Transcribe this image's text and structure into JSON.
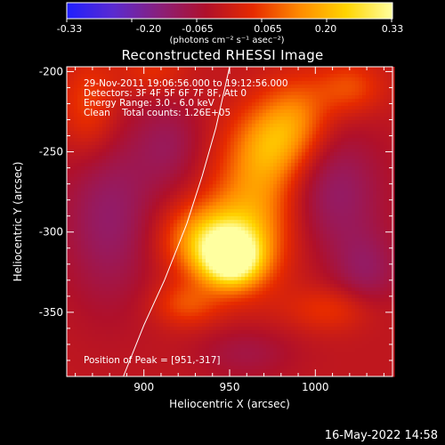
{
  "colorbar": {
    "ticks": [
      "-0.33",
      "-0.20",
      "-0.065",
      "0.065",
      "0.20",
      "0.33"
    ],
    "units_label": "(photons cm⁻² s⁻¹ asec⁻²)",
    "colors": [
      "#1f1fff",
      "#5a2ad0",
      "#8a1f7a",
      "#b0102a",
      "#e62a00",
      "#ff8a00",
      "#ffd400",
      "#ffffa0"
    ]
  },
  "chart_data": {
    "type": "heatmap",
    "title": "Reconstructed RHESSI Image",
    "xlabel": "Heliocentric X (arcsec)",
    "ylabel": "Heliocentric Y (arcsec)",
    "xlim": [
      855,
      1045
    ],
    "ylim": [
      -390,
      -197
    ],
    "xticks": [
      900,
      950,
      1000
    ],
    "yticks": [
      -200,
      -250,
      -300,
      -350
    ],
    "vmin": -0.33,
    "vmax": 0.33,
    "peak": [
      951,
      -317
    ],
    "limb_curve": [
      [
        888,
        -390
      ],
      [
        900,
        -358
      ],
      [
        912,
        -330
      ],
      [
        925,
        -295
      ],
      [
        934,
        -265
      ],
      [
        942,
        -235
      ],
      [
        950,
        -197
      ]
    ],
    "blobs": [
      {
        "x": 951,
        "y": -317,
        "amp": 0.33,
        "sx": 12,
        "sy": 12
      },
      {
        "x": 938,
        "y": -305,
        "amp": 0.22,
        "sx": 18,
        "sy": 16
      },
      {
        "x": 965,
        "y": -285,
        "amp": 0.17,
        "sx": 18,
        "sy": 32
      },
      {
        "x": 975,
        "y": -245,
        "amp": 0.14,
        "sx": 15,
        "sy": 18
      },
      {
        "x": 990,
        "y": -228,
        "amp": 0.12,
        "sx": 14,
        "sy": 18
      },
      {
        "x": 1020,
        "y": -210,
        "amp": 0.1,
        "sx": 14,
        "sy": 12
      },
      {
        "x": 868,
        "y": -222,
        "amp": 0.1,
        "sx": 12,
        "sy": 22
      },
      {
        "x": 905,
        "y": -200,
        "amp": 0.07,
        "sx": 14,
        "sy": 10
      },
      {
        "x": 925,
        "y": -345,
        "amp": 0.1,
        "sx": 14,
        "sy": 10
      },
      {
        "x": 1010,
        "y": -348,
        "amp": 0.08,
        "sx": 18,
        "sy": 10
      },
      {
        "x": 880,
        "y": -290,
        "amp": -0.1,
        "sx": 20,
        "sy": 40
      },
      {
        "x": 915,
        "y": -245,
        "amp": -0.07,
        "sx": 14,
        "sy": 20
      },
      {
        "x": 1010,
        "y": -275,
        "amp": -0.1,
        "sx": 22,
        "sy": 28
      },
      {
        "x": 1030,
        "y": -325,
        "amp": -0.08,
        "sx": 14,
        "sy": 18
      },
      {
        "x": 960,
        "y": -375,
        "amp": -0.06,
        "sx": 20,
        "sy": 12
      }
    ],
    "annotations": {
      "time_range": "29-Nov-2011 19:06:56.000 to 19:12:56.000",
      "detectors": "Detectors: 3F 4F 5F 6F 7F 8F, Att 0",
      "energy": "Energy Range: 3.0 - 6.0 keV",
      "clean": "Clean    Total counts: 1.26E+05",
      "peak_label": "Position of Peak = [951,-317]"
    }
  },
  "footer": {
    "timestamp": "16-May-2022 14:58"
  }
}
